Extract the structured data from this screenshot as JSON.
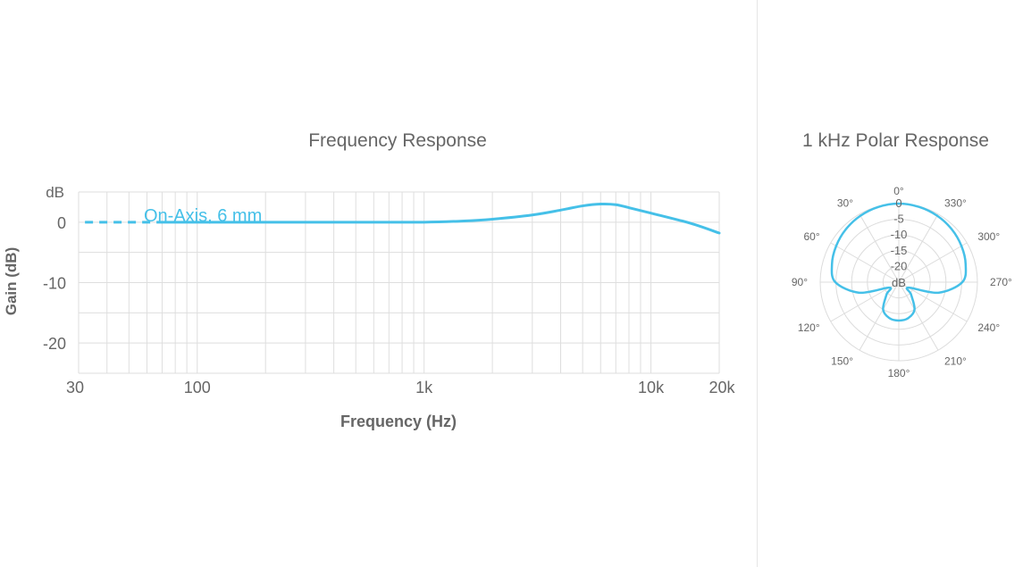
{
  "chart_data": [
    {
      "type": "line",
      "title": "Frequency Response",
      "xlabel": "Frequency (Hz)",
      "ylabel": "Gain (dB)",
      "y_unit_label": "dB",
      "x_scale": "log",
      "xlim": [
        30,
        20000
      ],
      "ylim": [
        -25,
        5
      ],
      "x_ticks": [
        {
          "value": 30,
          "label": "30"
        },
        {
          "value": 100,
          "label": "100"
        },
        {
          "value": 1000,
          "label": "1k"
        },
        {
          "value": 10000,
          "label": "10k"
        },
        {
          "value": 20000,
          "label": "20k"
        }
      ],
      "y_ticks": [
        {
          "value": 0,
          "label": "0"
        },
        {
          "value": -10,
          "label": "-10"
        },
        {
          "value": -20,
          "label": "-20"
        }
      ],
      "grid": true,
      "series": [
        {
          "name": "On-Axis, 6 mm",
          "color": "#45c0e8",
          "dashed_until": 70,
          "x": [
            32,
            50,
            70,
            100,
            200,
            500,
            1000,
            1500,
            2000,
            3000,
            4000,
            5000,
            6000,
            7000,
            8000,
            10000,
            15000,
            20000
          ],
          "y": [
            0,
            0,
            0,
            0,
            0,
            0,
            0,
            0.2,
            0.5,
            1.2,
            2.0,
            2.7,
            3.0,
            2.9,
            2.4,
            1.5,
            -0.2,
            -1.8
          ]
        }
      ]
    },
    {
      "type": "polar",
      "title": "1 kHz Polar Response",
      "radial_unit_label": "dB",
      "radial_ticks": [
        {
          "value": 0,
          "label": "0"
        },
        {
          "value": -5,
          "label": "-5"
        },
        {
          "value": -10,
          "label": "-10"
        },
        {
          "value": -15,
          "label": "-15"
        },
        {
          "value": -20,
          "label": "-20"
        }
      ],
      "radial_range": [
        -25,
        0
      ],
      "angle_ticks": [
        {
          "value": 0,
          "label": "0°"
        },
        {
          "value": 30,
          "label": "30°"
        },
        {
          "value": 60,
          "label": "60°"
        },
        {
          "value": 90,
          "label": "90°"
        },
        {
          "value": 120,
          "label": "120°"
        },
        {
          "value": 150,
          "label": "150°"
        },
        {
          "value": 180,
          "label": "180°"
        },
        {
          "value": 210,
          "label": "210°"
        },
        {
          "value": 240,
          "label": "240°"
        },
        {
          "value": 270,
          "label": "270°"
        },
        {
          "value": 300,
          "label": "300°"
        },
        {
          "value": 330,
          "label": "330°"
        }
      ],
      "series": [
        {
          "color": "#45c0e8",
          "angles": [
            0,
            15,
            30,
            45,
            60,
            75,
            90,
            105,
            120,
            135,
            150,
            165,
            180,
            195,
            210,
            225,
            240,
            255,
            270,
            285,
            300,
            315,
            330,
            345,
            360
          ],
          "values": [
            0,
            -0.2,
            -0.6,
            -1.2,
            -2.0,
            -3.0,
            -4.8,
            -12,
            -21.5,
            -19.5,
            -15.0,
            -13.2,
            -12.8,
            -13.2,
            -15.0,
            -19.5,
            -21.5,
            -12,
            -4.8,
            -3.0,
            -2.0,
            -1.2,
            -0.6,
            -0.2,
            0
          ]
        }
      ]
    }
  ]
}
